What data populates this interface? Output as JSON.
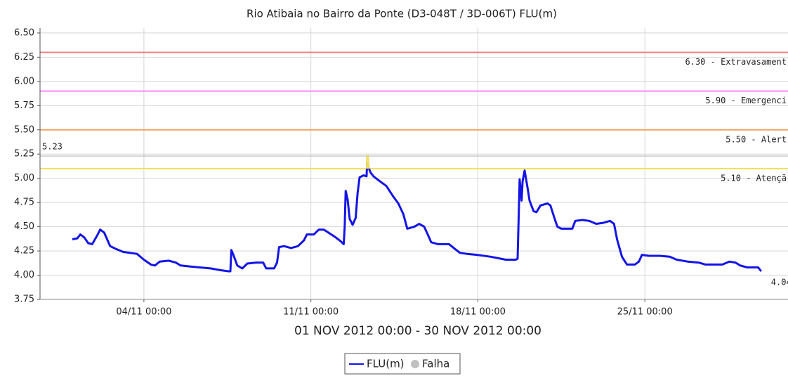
{
  "chart_data": {
    "type": "line",
    "title": "Rio Atibaia no Bairro da Ponte (D3-048T / 3D-006T) FLU(m)",
    "xlabel": "01 NOV 2012 00:00 - 30 NOV 2012 00:00",
    "xlim": [
      "2012-10-30T15:30",
      "2012-12-01T00:00"
    ],
    "xticks": [
      {
        "value": "2012-11-04T00:00",
        "label": "04/11 00:00"
      },
      {
        "value": "2012-11-11T00:00",
        "label": "11/11 00:00"
      },
      {
        "value": "2012-11-18T00:00",
        "label": "18/11 00:00"
      },
      {
        "value": "2012-11-25T00:00",
        "label": "25/11 00:00"
      }
    ],
    "ylim": [
      3.75,
      6.55
    ],
    "yticks": [
      3.75,
      {
        "value": 4,
        "label": "4.00"
      },
      4.25,
      {
        "value": 4.5,
        "label": "4.50"
      },
      4.75,
      {
        "value": 5,
        "label": "5.00"
      },
      5.25,
      {
        "value": 5.5,
        "label": "5.50"
      },
      5.75,
      {
        "value": 6,
        "label": "6.00"
      },
      6.25,
      {
        "value": 6.5,
        "label": "6.50"
      }
    ],
    "grid": true,
    "thresholds": [
      {
        "value": 6.3,
        "label": "6.30 - Extravasament",
        "color": "#f08080"
      },
      {
        "value": 5.9,
        "label": "5.90 - Emergenci",
        "color": "#ff88ff"
      },
      {
        "value": 5.5,
        "label": "5.50 - Alert",
        "color": "#f4a460"
      },
      {
        "value": 5.1,
        "label": "5.10 - Atençã",
        "color": "#f2e05a"
      }
    ],
    "max": 5.23,
    "last": 4.04,
    "failure_marker": {
      "label": "Falha",
      "color": "#c0c0c0"
    },
    "x": [
      "2012-11-01T00:00",
      "2012-11-01T05:00",
      "2012-11-01T08:00",
      "2012-11-01T12:00",
      "2012-11-01T16:00",
      "2012-11-01T20:00",
      "2012-11-02T01:00",
      "2012-11-02T04:00",
      "2012-11-02T08:00",
      "2012-11-02T11:00",
      "2012-11-02T14:00",
      "2012-11-02T20:00",
      "2012-11-03T03:00",
      "2012-11-03T10:00",
      "2012-11-03T17:00",
      "2012-11-04T00:00",
      "2012-11-04T07:00",
      "2012-11-04T11:00",
      "2012-11-04T16:00",
      "2012-11-05T01:00",
      "2012-11-05T08:00",
      "2012-11-05T13:00",
      "2012-11-05T22:00",
      "2012-11-06T08:00",
      "2012-11-06T19:00",
      "2012-11-07T06:00",
      "2012-11-07T13:00",
      "2012-11-07T15:00",
      "2012-11-07T16:00",
      "2012-11-07T18:00",
      "2012-11-07T22:00",
      "2012-11-08T03:00",
      "2012-11-08T08:00",
      "2012-11-08T17:00",
      "2012-11-09T00:00",
      "2012-11-09T03:00",
      "2012-11-09T11:00",
      "2012-11-09T14:00",
      "2012-11-09T16:00",
      "2012-11-09T21:00",
      "2012-11-10T04:00",
      "2012-11-10T11:00",
      "2012-11-10T17:00",
      "2012-11-10T20:00",
      "2012-11-11T03:00",
      "2012-11-11T08:00",
      "2012-11-11T13:00",
      "2012-11-11T19:00",
      "2012-11-12T01:00",
      "2012-11-12T06:00",
      "2012-11-12T09:00",
      "2012-11-12T10:00",
      "2012-11-12T11:00",
      "2012-11-12T13:00",
      "2012-11-12T15:00",
      "2012-11-12T18:00",
      "2012-11-12T21:00",
      "2012-11-12T23:00",
      "2012-11-13T01:00",
      "2012-11-13T05:00",
      "2012-11-13T08:00",
      "2012-11-13T09:00",
      "2012-11-13T10:00",
      "2012-11-13T12:00",
      "2012-11-13T15:00",
      "2012-11-13T20:00",
      "2012-11-14T04:00",
      "2012-11-14T11:00",
      "2012-11-14T16:00",
      "2012-11-14T21:00",
      "2012-11-15T01:00",
      "2012-11-15T08:00",
      "2012-11-15T13:00",
      "2012-11-15T18:00",
      "2012-11-15T22:00",
      "2012-11-16T01:00",
      "2012-11-16T08:00",
      "2012-11-16T19:00",
      "2012-11-17T01:00",
      "2012-11-17T06:00",
      "2012-11-17T13:00",
      "2012-11-17T23:00",
      "2012-11-18T13:00",
      "2012-11-19T04:00",
      "2012-11-19T14:00",
      "2012-11-19T16:00",
      "2012-11-19T18:00",
      "2012-11-19T20:00",
      "2012-11-19T21:00",
      "2012-11-19T23:00",
      "2012-11-20T02:00",
      "2012-11-20T04:00",
      "2012-11-20T08:00",
      "2012-11-20T11:00",
      "2012-11-20T15:00",
      "2012-11-20T22:00",
      "2012-11-21T01:00",
      "2012-11-21T05:00",
      "2012-11-21T08:00",
      "2012-11-21T12:00",
      "2012-11-21T23:00",
      "2012-11-22T02:00",
      "2012-11-22T09:00",
      "2012-11-22T16:00",
      "2012-11-22T23:00",
      "2012-11-23T06:00",
      "2012-11-23T13:00",
      "2012-11-23T17:00",
      "2012-11-23T20:00",
      "2012-11-24T01:00",
      "2012-11-24T06:00",
      "2012-11-24T14:00",
      "2012-11-24T18:00",
      "2012-11-24T21:00",
      "2012-11-25T04:00",
      "2012-11-25T15:00",
      "2012-11-26T01:00",
      "2012-11-26T08:00",
      "2012-11-26T19:00",
      "2012-11-27T06:00",
      "2012-11-27T13:00",
      "2012-11-28T06:00",
      "2012-11-28T13:00",
      "2012-11-28T19:00",
      "2012-11-29T00:00",
      "2012-11-29T07:00",
      "2012-11-29T18:00",
      "2012-11-29T21:00"
    ],
    "series": [
      {
        "name": "FLU(m)",
        "color": "#1414e6",
        "values": [
          4.37,
          4.38,
          4.42,
          4.39,
          4.33,
          4.32,
          4.41,
          4.47,
          4.44,
          4.37,
          4.3,
          4.27,
          4.24,
          4.23,
          4.22,
          4.16,
          4.11,
          4.1,
          4.14,
          4.15,
          4.13,
          4.1,
          4.09,
          4.08,
          4.07,
          4.05,
          4.04,
          4.04,
          4.26,
          4.21,
          4.1,
          4.07,
          4.12,
          4.13,
          4.13,
          4.07,
          4.07,
          4.13,
          4.29,
          4.3,
          4.28,
          4.3,
          4.36,
          4.42,
          4.42,
          4.47,
          4.47,
          4.43,
          4.39,
          4.35,
          4.32,
          4.5,
          4.87,
          4.78,
          4.58,
          4.52,
          4.59,
          4.85,
          5.01,
          5.03,
          5.02,
          5.23,
          5.11,
          5.06,
          5.02,
          4.98,
          4.92,
          4.81,
          4.74,
          4.63,
          4.48,
          4.5,
          4.53,
          4.5,
          4.41,
          4.34,
          4.32,
          4.32,
          4.27,
          4.23,
          4.22,
          4.21,
          4.19,
          4.16,
          4.16,
          4.17,
          4.99,
          4.77,
          4.97,
          5.08,
          4.9,
          4.77,
          4.66,
          4.65,
          4.72,
          4.74,
          4.72,
          4.59,
          4.5,
          4.48,
          4.48,
          4.56,
          4.57,
          4.56,
          4.53,
          4.54,
          4.56,
          4.53,
          4.37,
          4.19,
          4.11,
          4.11,
          4.14,
          4.21,
          4.2,
          4.2,
          4.19,
          4.16,
          4.14,
          4.13,
          4.11,
          4.11,
          4.14,
          4.13,
          4.1,
          4.08,
          4.08,
          4.04
        ]
      }
    ]
  }
}
